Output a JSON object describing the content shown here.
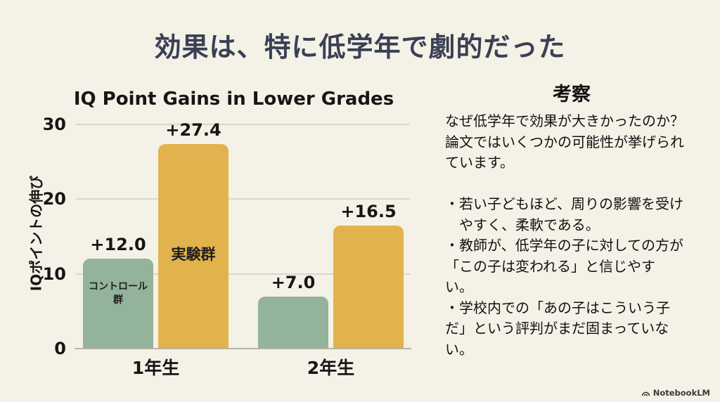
{
  "slide": {
    "title": "効果は、特に低学年で劇的だった",
    "title_color": "#3a4054",
    "background": "#f4f1e6"
  },
  "chart_data": {
    "type": "bar",
    "title": "IQ Point Gains in Lower Grades",
    "xlabel": "",
    "ylabel": "IQポイントの伸び",
    "categories": [
      "1年生",
      "2年生"
    ],
    "series": [
      {
        "name": "コントロール群",
        "inner_label": "コントロール\n群",
        "color": "#94b39b",
        "values": [
          12.0,
          7.0
        ],
        "value_labels": [
          "+12.0",
          "+7.0"
        ]
      },
      {
        "name": "実験群",
        "inner_label": "実験群",
        "color": "#e2b24c",
        "values": [
          27.4,
          16.5
        ],
        "value_labels": [
          "+27.4",
          "+16.5"
        ]
      }
    ],
    "ylim": [
      0,
      30
    ],
    "yticks": [
      0,
      10,
      20,
      30
    ],
    "grid": true,
    "legend_position": "inside-first-bars"
  },
  "discussion": {
    "heading": "考察",
    "body": "なぜ低学年で効果が大きかったのか？\n論文ではいくつかの可能性が挙げられ\nています。\n\n・若い子どもほど、周りの影響を受け\n　やすく、柔軟である。\n・教師が、低学年の子に対しての方が\n「この子は変われる」と信じやす\nい。\n・学校内での「あの子はこういう子\nだ」という評判がまだ固まっていな\nい。"
  },
  "footer": {
    "brand": "NotebookLM",
    "icon": "notebooklm-logo-icon"
  }
}
